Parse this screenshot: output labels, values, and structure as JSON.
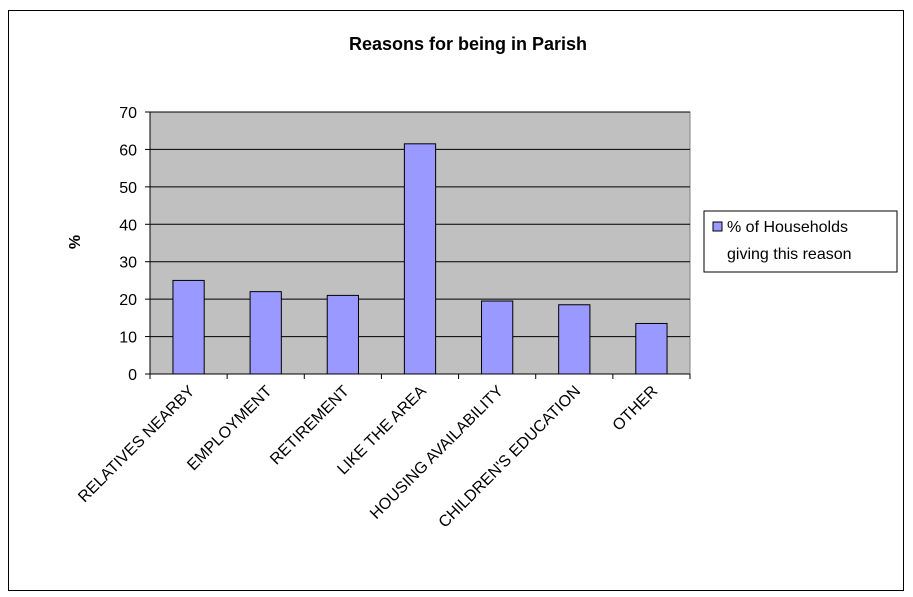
{
  "chart_data": {
    "type": "bar",
    "title": "Reasons for being in Parish",
    "xlabel": "",
    "ylabel": "%",
    "ylim": [
      0,
      70
    ],
    "yticks": [
      0,
      10,
      20,
      30,
      40,
      50,
      60,
      70
    ],
    "grid": true,
    "legend_position": "right",
    "categories": [
      "RELATIVES NEARBY",
      "EMPLOYMENT",
      "RETIREMENT",
      "LIKE THE AREA",
      "HOUSING AVAILABILITY",
      "CHILDREN'S EDUCATION",
      "OTHER"
    ],
    "series": [
      {
        "name": "% of Households giving this reason",
        "legend_lines": [
          "% of Households",
          "giving this reason"
        ],
        "values": [
          25,
          22,
          21,
          61.5,
          19.5,
          18.5,
          13.5
        ]
      }
    ],
    "colors": {
      "plot_background": "#c0c0c0",
      "bar_fill": "#9999ff",
      "bar_stroke": "#000000",
      "gridline": "#000000"
    }
  }
}
